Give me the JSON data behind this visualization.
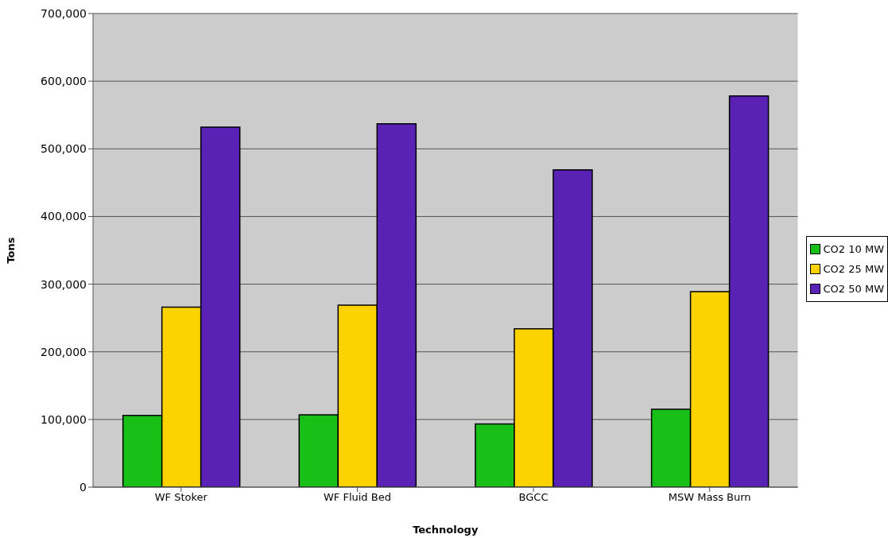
{
  "chart_data": {
    "type": "bar",
    "xlabel": "Technology",
    "ylabel": "Tons",
    "categories": [
      "WF Stoker",
      "WF Fluid Bed",
      "BGCC",
      "MSW Mass Burn"
    ],
    "series": [
      {
        "name": "CO2 10 MW",
        "color": "#17bf17",
        "values": [
          106000,
          107000,
          93500,
          115000
        ]
      },
      {
        "name": "CO2 25 MW",
        "color": "#fcd200",
        "values": [
          266000,
          269000,
          234000,
          289000
        ]
      },
      {
        "name": "CO2 50 MW",
        "color": "#5a22b4",
        "values": [
          532000,
          537000,
          469000,
          578000
        ]
      }
    ],
    "ylim": [
      0,
      700000
    ],
    "yticks": [
      {
        "value": 0,
        "label": "0"
      },
      {
        "value": 100000,
        "label": "100,000"
      },
      {
        "value": 200000,
        "label": "200,000"
      },
      {
        "value": 300000,
        "label": "300,000"
      },
      {
        "value": 400000,
        "label": "400,000"
      },
      {
        "value": 500000,
        "label": "500,000"
      },
      {
        "value": 600000,
        "label": "600,000"
      },
      {
        "value": 700000,
        "label": "700,000"
      }
    ],
    "grid": "y",
    "legend": "right"
  }
}
